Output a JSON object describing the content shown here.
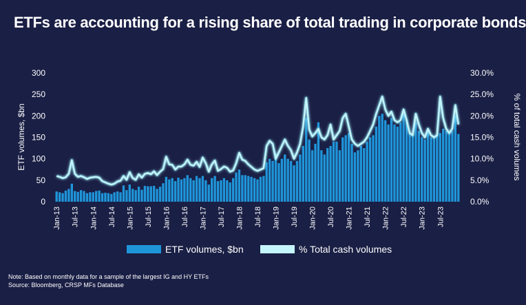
{
  "title": "ETFs are accounting for a rising share of total trading in corporate bonds",
  "notes": {
    "line1": "Note: Based on monthly data for a sample of the largest IG and HY ETFs",
    "line2": "Source: Bloomberg, CRSP MFs Database"
  },
  "colors": {
    "background": "#1a1f45",
    "bar": "#1f95d9",
    "bar_dark": "#12567f",
    "line": "#c5f5fc",
    "line_glow": "#2fd3ee"
  },
  "chart_data": {
    "type": "bar",
    "x_ticks": [
      "Jan-13",
      "Jul-13",
      "Jan-14",
      "Jul-14",
      "Jan-15",
      "Jul-15",
      "Jan-16",
      "Jul-16",
      "Jan-17",
      "Jul-17",
      "Jan-18",
      "Jul-18",
      "Jan-19",
      "Jul-19",
      "Jan-20",
      "Jul-20",
      "Jan-21",
      "Jul-21",
      "Jan-22",
      "Jul-22",
      "Jan-23",
      "Jul-23"
    ],
    "ylabel": "ETF volumes, $bn",
    "ylabel_right": "% of total cash volumes",
    "y_ticks": [
      "0",
      "50",
      "100",
      "150",
      "200",
      "250",
      "300"
    ],
    "y2_ticks": [
      "0.0%",
      "5.0%",
      "10.0%",
      "15.0%",
      "20.0%",
      "25.0%",
      "30.0%"
    ],
    "ylim": [
      0,
      300
    ],
    "y2lim": [
      0,
      30
    ],
    "legend": [
      "ETF volumes, $bn",
      "% Total cash volumes"
    ],
    "legend_position": "bottom",
    "grid": false,
    "series": [
      {
        "name": "ETF volumes, $bn",
        "type": "bar",
        "axis": "left",
        "values": [
          24,
          22,
          20,
          26,
          30,
          42,
          25,
          23,
          27,
          25,
          20,
          22,
          22,
          25,
          26,
          20,
          21,
          20,
          18,
          22,
          24,
          22,
          38,
          27,
          40,
          30,
          27,
          35,
          28,
          37,
          36,
          36,
          37,
          30,
          35,
          43,
          58,
          52,
          55,
          48,
          56,
          52,
          55,
          62,
          55,
          50,
          60,
          55,
          60,
          50,
          40,
          55,
          60,
          48,
          50,
          55,
          50,
          45,
          55,
          68,
          75,
          62,
          62,
          60,
          58,
          55,
          52,
          58,
          60,
          92,
          100,
          95,
          112,
          90,
          100,
          110,
          100,
          95,
          85,
          95,
          110,
          130,
          195,
          145,
          120,
          135,
          185,
          120,
          110,
          125,
          130,
          140,
          140,
          120,
          150,
          155,
          160,
          135,
          115,
          120,
          130,
          125,
          140,
          150,
          155,
          175,
          200,
          205,
          190,
          180,
          195,
          180,
          175,
          185,
          205,
          190,
          160,
          155,
          185,
          165,
          150,
          145,
          165,
          150,
          150,
          155,
          160,
          170,
          165,
          160,
          165,
          200,
          158
        ]
      },
      {
        "name": "% Total cash volumes",
        "type": "line",
        "axis": "right",
        "values": [
          6.0,
          5.8,
          5.5,
          5.7,
          6.5,
          9.7,
          6.5,
          5.8,
          6.0,
          5.7,
          5.3,
          5.6,
          5.7,
          5.8,
          5.6,
          4.8,
          4.5,
          4.2,
          4.0,
          4.2,
          4.7,
          4.9,
          6.0,
          5.1,
          6.9,
          5.5,
          5.1,
          6.4,
          5.6,
          6.5,
          6.7,
          6.4,
          7.1,
          6.2,
          7.0,
          7.6,
          10.5,
          8.7,
          8.6,
          7.5,
          8.2,
          8.2,
          8.7,
          9.8,
          8.6,
          8.4,
          9.3,
          8.1,
          10.3,
          9.0,
          7.0,
          8.7,
          9.6,
          7.2,
          7.6,
          8.2,
          7.9,
          7.0,
          7.3,
          9.0,
          11.4,
          9.8,
          9.5,
          8.7,
          8.1,
          7.5,
          7.2,
          7.5,
          7.8,
          13.0,
          14.2,
          13.5,
          10.0,
          11.5,
          13.0,
          14.5,
          13.0,
          12.0,
          10.0,
          11.5,
          13.5,
          17.5,
          24.2,
          16.8,
          15.2,
          16.0,
          17.0,
          15.0,
          14.5,
          15.5,
          18.0,
          14.5,
          15.5,
          16.5,
          19.5,
          20.5,
          17.5,
          14.5,
          13.5,
          13.0,
          13.5,
          14.0,
          15.0,
          16.5,
          18.0,
          20.5,
          22.5,
          24.5,
          21.5,
          20.0,
          21.0,
          19.0,
          18.5,
          19.0,
          21.5,
          19.0,
          16.0,
          15.5,
          20.5,
          18.0,
          16.0,
          15.0,
          17.0,
          15.5,
          15.0,
          15.5,
          24.5,
          19.5,
          17.0,
          16.0,
          17.0,
          22.5,
          18.0
        ]
      }
    ]
  }
}
